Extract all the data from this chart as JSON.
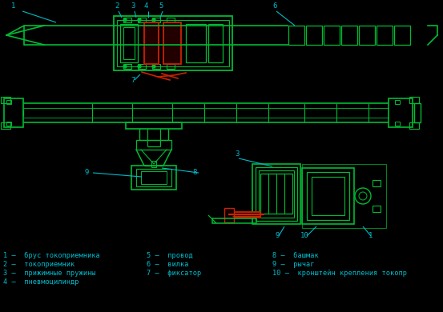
{
  "bg_color": "#000000",
  "drawing_color": "#00bb33",
  "red_color": "#cc2200",
  "cyan_color": "#00bbcc",
  "label_color": "#00bbcc",
  "legend_items": [
    "1 –  брус токоприемника",
    "2 –  токоприемник",
    "3 –  прижимные пружины",
    "4 –  пневмоцилиндр"
  ],
  "legend_items2": [
    "5 –  провод",
    "6 –  вилка",
    "7 –  фиксатор"
  ],
  "legend_items3": [
    "8 –  башмак",
    "9 –  рычаг",
    "10 –  кронштейн крепления токопр"
  ]
}
